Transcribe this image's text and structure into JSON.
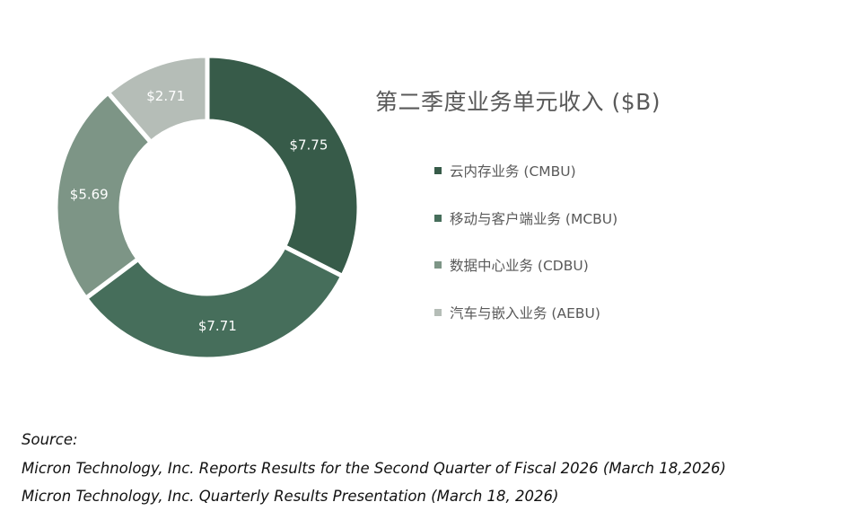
{
  "chart_data": {
    "type": "pie",
    "title": "第二季度业务单元收入 ($B)",
    "categories": [
      "云内存业务 (CMBU)",
      "移动与客户端业务 (MCBU)",
      "数据中心业务 (CDBU)",
      "汽车与嵌入业务 (AEBU)"
    ],
    "values": [
      7.75,
      7.71,
      5.69,
      2.71
    ],
    "data_labels": [
      "$7.75",
      "$7.71",
      "$5.69",
      "$2.71"
    ],
    "colors": [
      "#375b49",
      "#466e5b",
      "#7d9586",
      "#b5bdb7"
    ],
    "donut": true,
    "legend_position": "right"
  },
  "source": {
    "heading": "Source:",
    "lines": [
      "Micron Technology, Inc. Reports Results for the Second Quarter of Fiscal 2026 (March 18,2026)",
      "Micron Technology, Inc. Quarterly Results Presentation (March 18, 2026)"
    ]
  }
}
